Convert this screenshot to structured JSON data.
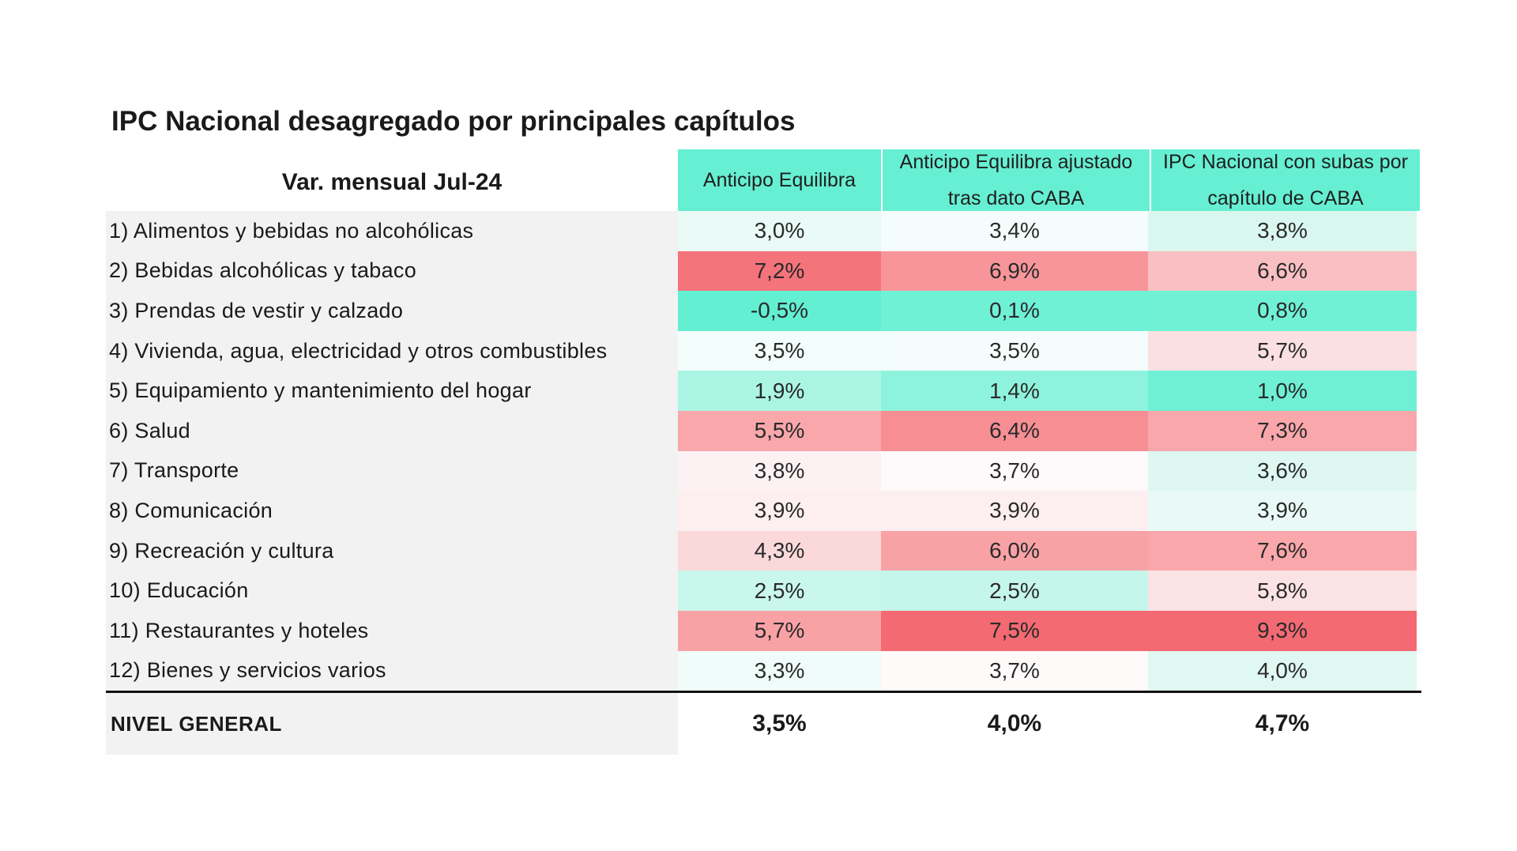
{
  "chart_data": {
    "type": "table",
    "title": "IPC Nacional desagregado por principales capítulos",
    "row_header": "Var. mensual Jul-24",
    "columns": [
      "Anticipo Equilibra",
      "Anticipo Equilibra ajustado tras dato CABA",
      "IPC Nacional con subas por capítulo de CABA"
    ],
    "rows": [
      {
        "label": "1) Alimentos y bebidas no alcohólicas",
        "values": [
          "3,0%",
          "3,4%",
          "3,8%"
        ]
      },
      {
        "label": "2) Bebidas alcohólicas y tabaco",
        "values": [
          "7,2%",
          "6,9%",
          "6,6%"
        ]
      },
      {
        "label": "3) Prendas de vestir y calzado",
        "values": [
          "-0,5%",
          "0,1%",
          "0,8%"
        ]
      },
      {
        "label": "4) Vivienda, agua, electricidad y otros combustibles",
        "values": [
          "3,5%",
          "3,5%",
          "5,7%"
        ]
      },
      {
        "label": "5) Equipamiento y mantenimiento del hogar",
        "values": [
          "1,9%",
          "1,4%",
          "1,0%"
        ]
      },
      {
        "label": "6) Salud",
        "values": [
          "5,5%",
          "6,4%",
          "7,3%"
        ]
      },
      {
        "label": "7) Transporte",
        "values": [
          "3,8%",
          "3,7%",
          "3,6%"
        ]
      },
      {
        "label": "8) Comunicación",
        "values": [
          "3,9%",
          "3,9%",
          "3,9%"
        ]
      },
      {
        "label": "9) Recreación y cultura",
        "values": [
          "4,3%",
          "6,0%",
          "7,6%"
        ]
      },
      {
        "label": "10) Educación",
        "values": [
          "2,5%",
          "2,5%",
          "5,8%"
        ]
      },
      {
        "label": "11) Restaurantes y hoteles",
        "values": [
          "5,7%",
          "7,5%",
          "9,3%"
        ]
      },
      {
        "label": "12) Bienes y servicios varios",
        "values": [
          "3,3%",
          "3,7%",
          "4,0%"
        ]
      }
    ],
    "total": {
      "label": "NIVEL GENERAL",
      "values": [
        "3,5%",
        "4,0%",
        "4,7%"
      ]
    },
    "cell_colors": [
      [
        "#eafaf6",
        "#f4fdfb",
        "#d9f7ef"
      ],
      [
        "#f5737a",
        "#f7959a",
        "#f9bfc2"
      ],
      [
        "#62efd2",
        "#6ff1d6",
        "#70f1d6"
      ],
      [
        "#f3fdfb",
        "#f4fdfb",
        "#fbe0e2"
      ],
      [
        "#aaf5e4",
        "#8ef3dc",
        "#6ff0d5"
      ],
      [
        "#f9a7ab",
        "#f68e93",
        "#f9a7ab"
      ],
      [
        "#fdf2f3",
        "#fef9fa",
        "#def7f1"
      ],
      [
        "#fdeff0",
        "#fdeff0",
        "#e9faf6"
      ],
      [
        "#fbd9db",
        "#f8a2a6",
        "#f9a7ab"
      ],
      [
        "#c9f7ec",
        "#c5f6eb",
        "#fbe3e5"
      ],
      [
        "#f9a2a6",
        "#f36a72",
        "#f36a72"
      ],
      [
        "#f0fcf9",
        "#fefafa",
        "#e0f8f2"
      ]
    ],
    "header_color": "#66efd2"
  }
}
